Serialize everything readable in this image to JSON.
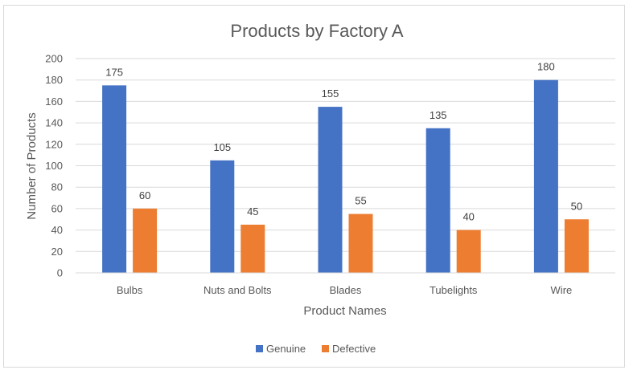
{
  "chart_data": {
    "type": "bar",
    "title": "Products by Factory A",
    "xlabel": "Product Names",
    "ylabel": "Number of Products",
    "categories": [
      "Bulbs",
      "Nuts and Bolts",
      "Blades",
      "Tubelights",
      "Wire"
    ],
    "series": [
      {
        "name": "Genuine",
        "values": [
          175,
          105,
          155,
          135,
          180
        ],
        "color": "#4472C4"
      },
      {
        "name": "Defective",
        "values": [
          60,
          45,
          55,
          40,
          50
        ],
        "color": "#ED7D31"
      }
    ],
    "ylim": [
      0,
      200
    ],
    "yticks": [
      0,
      20,
      40,
      60,
      80,
      100,
      120,
      140,
      160,
      180,
      200
    ],
    "grid": true,
    "legend_position": "bottom",
    "data_labels": true
  }
}
